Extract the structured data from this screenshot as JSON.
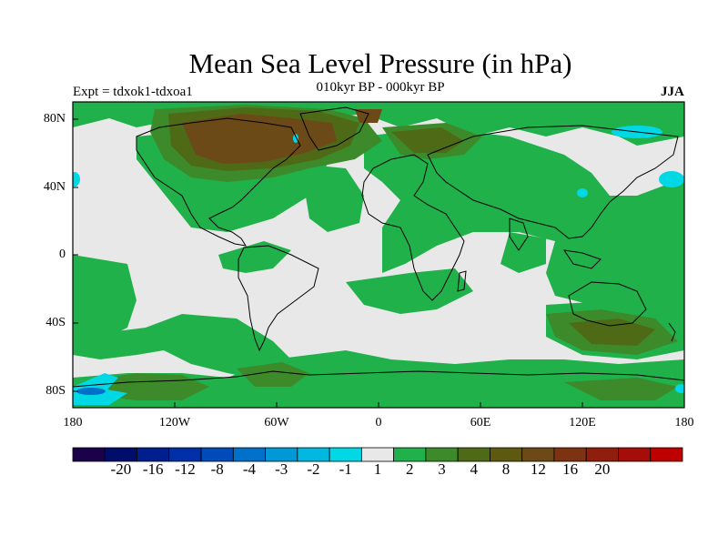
{
  "title": "Mean Sea Level Pressure (in hPa)",
  "subtitle": "010kyr BP - 000kyr BP",
  "experiment": "Expt = tdxok1-tdxoa1",
  "season": "JJA",
  "lat_labels": [
    "80N",
    "40N",
    "0",
    "40S",
    "80S"
  ],
  "lon_labels": [
    "180",
    "120W",
    "60W",
    "0",
    "60E",
    "120E",
    "180"
  ],
  "colors": {
    "background_land_sea": "#e8e8e8",
    "positive_1_2": "#21b14a",
    "positive_2_3": "#3c8a2a",
    "positive_3_4": "#4e6a16",
    "positive_4_8": "#6b4a18",
    "negative_minus1": "#00d8e6"
  },
  "colorbar": {
    "colors": [
      "#1b004a",
      "#000d6b",
      "#001f8f",
      "#0030a8",
      "#004bba",
      "#0070c8",
      "#0098d6",
      "#00b8e0",
      "#00d8e6",
      "#e8e8e8",
      "#21b14a",
      "#3c8a2a",
      "#4e6a16",
      "#5d5a10",
      "#6b4a18",
      "#7d3312",
      "#8f1f0c",
      "#a50d08",
      "#c00000"
    ],
    "labels": [
      "-20",
      "-16",
      "-12",
      "-8",
      "-4",
      "-3",
      "-2",
      "-1",
      "1",
      "2",
      "3",
      "4",
      "8",
      "12",
      "16",
      "20"
    ]
  }
}
